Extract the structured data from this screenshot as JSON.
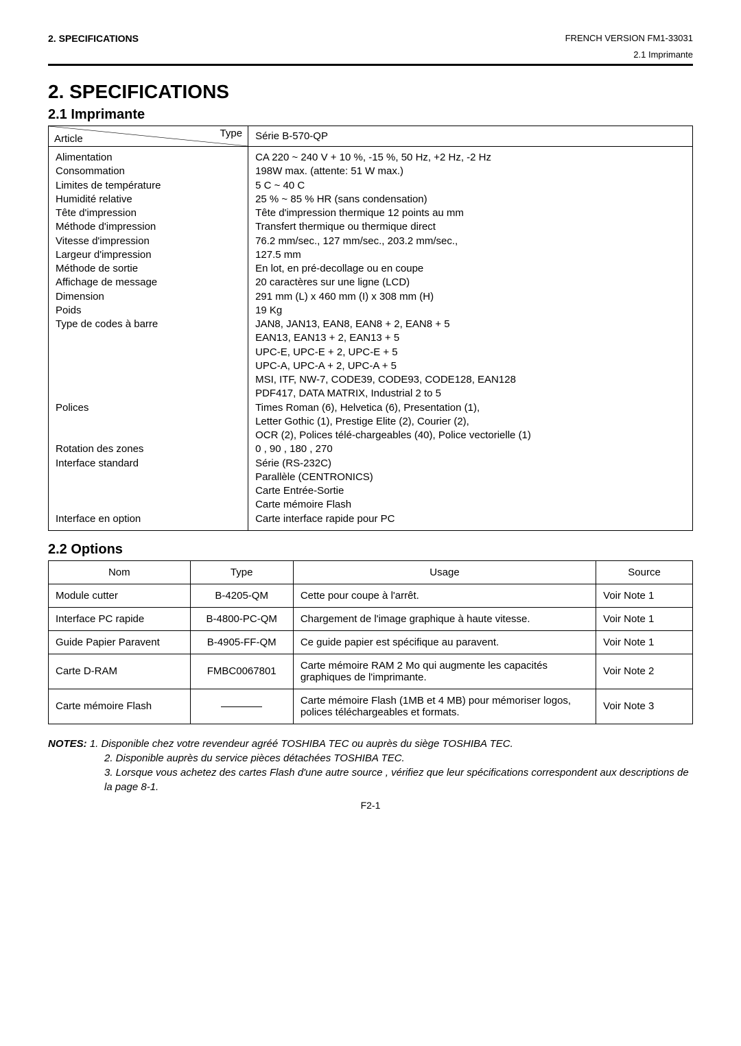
{
  "header": {
    "section": "2.   SPECIFICATIONS",
    "doc_ref": "FRENCH VERSION FM1-33031",
    "sub": "2.1 Imprimante"
  },
  "h1": "2. SPECIFICATIONS",
  "h2_1": "2.1  Imprimante",
  "spec_table": {
    "diag_top": "Type",
    "diag_bottom": "Article",
    "header_right": "Série B-570-QP",
    "rows": [
      [
        "Alimentation",
        "CA 220 ~ 240 V + 10 %, -15 %, 50 Hz, +2 Hz, -2 Hz"
      ],
      [
        "Consommation",
        "198W max. (attente:  51 W max.)"
      ],
      [
        "Limites de température",
        "5 C ~ 40 C"
      ],
      [
        "Humidité relative",
        "25 % ~ 85 % HR (sans condensation)"
      ],
      [
        "Tête d'impression",
        "Tête d'impression thermique 12 points au mm"
      ],
      [
        "Méthode d'impression",
        "Transfert thermique ou thermique direct"
      ],
      [
        "Vitesse d'impression",
        "76.2 mm/sec., 127 mm/sec., 203.2 mm/sec.,"
      ],
      [
        "Largeur d'impression",
        "127.5 mm"
      ],
      [
        "Méthode de sortie",
        "En lot, en pré-decollage ou en coupe"
      ],
      [
        "Affichage de message",
        "20 caractères sur une ligne (LCD)"
      ],
      [
        "Dimension",
        "291 mm (L) x 460 mm (I) x 308 mm (H)"
      ],
      [
        "Poids",
        "19 Kg"
      ],
      [
        "Type de codes à barre",
        "JAN8, JAN13, EAN8, EAN8 + 2,  EAN8 + 5"
      ],
      [
        "",
        "EAN13, EAN13 + 2,  EAN13 + 5"
      ],
      [
        "",
        "UPC-E, UPC-E + 2, UPC-E + 5"
      ],
      [
        "",
        "UPC-A, UPC-A + 2, UPC-A + 5"
      ],
      [
        "",
        "MSI, ITF, NW-7, CODE39, CODE93, CODE128, EAN128"
      ],
      [
        "",
        "PDF417, DATA MATRIX, Industrial 2 to 5"
      ],
      [
        "Polices",
        "Times Roman (6), Helvetica (6), Presentation (1),"
      ],
      [
        "",
        "Letter Gothic (1), Prestige Elite (2), Courier (2),"
      ],
      [
        "",
        "OCR (2), Polices télé-chargeables (40), Police vectorielle (1)"
      ],
      [
        "Rotation des zones",
        "0 , 90 , 180 , 270"
      ],
      [
        "Interface standard",
        "Série (RS-232C)"
      ],
      [
        "",
        "Parallèle (CENTRONICS)"
      ],
      [
        "",
        "Carte Entrée-Sortie"
      ],
      [
        "",
        "Carte mémoire Flash"
      ],
      [
        "Interface en option",
        "Carte interface rapide pour PC"
      ]
    ]
  },
  "h2_2": "2.2  Options",
  "options_table": {
    "headers": [
      "Nom",
      "Type",
      "Usage",
      "Source"
    ],
    "rows": [
      {
        "nom": "Module cutter",
        "type": "B-4205-QM",
        "usage": "Cette pour coupe à l'arrêt.",
        "source": "Voir Note 1"
      },
      {
        "nom": "Interface PC rapide",
        "type": "B-4800-PC-QM",
        "usage": "Chargement de l'image graphique à haute vitesse.",
        "source": "Voir Note 1"
      },
      {
        "nom": "Guide Papier Paravent",
        "type": "B-4905-FF-QM",
        "usage": "Ce guide papier est spécifique au paravent.",
        "source": "Voir Note 1"
      },
      {
        "nom": "Carte D-RAM",
        "type": "FMBC0067801",
        "usage": "Carte mémoire RAM 2 Mo qui augmente les capacités graphiques de l'imprimante.",
        "source": "Voir Note 2"
      },
      {
        "nom": "Carte mémoire Flash",
        "type": "—",
        "usage": "Carte mémoire Flash (1MB et 4 MB) pour mémoriser logos, polices téléchargeables et formats.",
        "source": "Voir Note 3"
      }
    ]
  },
  "notes": {
    "label": "NOTES:",
    "items": [
      "1.   Disponible chez votre revendeur agréé TOSHIBA TEC ou auprès du siège TOSHIBA TEC.",
      "2.   Disponible auprès du service pièces détachées TOSHIBA TEC.",
      "3.  Lorsque vous achetez des cartes Flash d'une autre source , vérifiez que leur spécifications correspondent aux descriptions de la page 8-1."
    ]
  },
  "footer": "F2-1"
}
